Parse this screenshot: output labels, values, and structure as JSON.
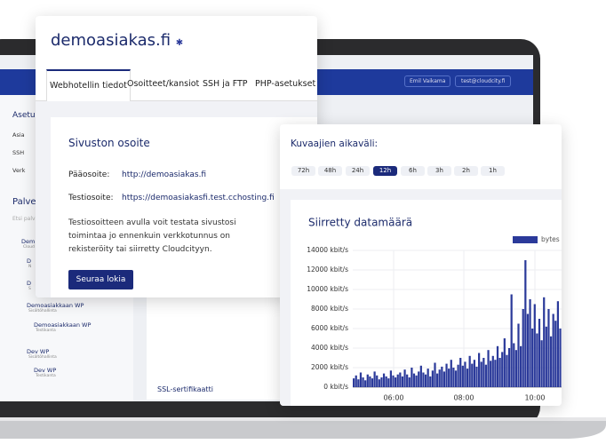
{
  "topbar": {
    "user": "Emil Vaikama",
    "email": "test@cloudcity.fi"
  },
  "sidebar": {
    "heading": "Asetuk",
    "items": [
      "Asia",
      "SSH",
      "Verk"
    ],
    "services_heading": "Palvel",
    "search": "Etsi palv",
    "tree": [
      {
        "title": "Dem",
        "sub": "Cloud"
      },
      {
        "title": "D",
        "sub": "N"
      },
      {
        "title": "D",
        "sub": "S"
      },
      {
        "title": "Demoasiakkaan WP",
        "sub": "Sisältöhallinta"
      },
      {
        "title": "Demoasiakkaan WP",
        "sub": "Testikanta"
      },
      {
        "title": "Dev WP",
        "sub": "Sisältöhallinta"
      },
      {
        "title": "Dev WP",
        "sub": "Testikanta"
      }
    ]
  },
  "footer_label": "SSL-sertifikaatti",
  "site_card": {
    "title": "demoasiakas.fi",
    "tabs": [
      "Webhotellin tiedot",
      "Osoitteet/kansiot",
      "SSH ja FTP",
      "PHP-asetukset"
    ],
    "active_tab": 0,
    "section_title": "Sivuston osoite",
    "rows": [
      {
        "label": "Pääosoite:",
        "value": "http://demoasiakas.fi"
      },
      {
        "label": "Testiosoite:",
        "value": "https://demoasiakasfi.test.cchosting.fi"
      }
    ],
    "description": "Testiosoitteen avulla voit testata sivustosi toimintaa jo ennenkuin verkkotunnus on rekisteröity tai siirretty Cloudcityyn.",
    "button": "Seuraa lokia"
  },
  "chart_card": {
    "range_label": "Kuvaajien aikaväli:",
    "ranges": [
      "72h",
      "48h",
      "24h",
      "12h",
      "6h",
      "3h",
      "2h",
      "1h"
    ],
    "active_range": 3
  },
  "chart_data": {
    "type": "bar",
    "title": "Siirretty datamäärä",
    "legend": "bytes",
    "color": "#2b3a9a",
    "ylim": [
      0,
      14000
    ],
    "yticks": [
      {
        "value": 0,
        "label": "0 kbit/s"
      },
      {
        "value": 2000,
        "label": "2000 kbit/s"
      },
      {
        "value": 4000,
        "label": "4000 kbit/s"
      },
      {
        "value": 6000,
        "label": "6000 kbit/s"
      },
      {
        "value": 8000,
        "label": "8000 kbit/s"
      },
      {
        "value": 10000,
        "label": "10000 kbit/s"
      },
      {
        "value": 12000,
        "label": "12000 kbit/s"
      },
      {
        "value": 14000,
        "label": "14000 kbit/s"
      }
    ],
    "xticks": [
      "06:00",
      "08:00",
      "10:00"
    ],
    "grid": true,
    "values": [
      900,
      1200,
      800,
      1500,
      1000,
      700,
      1300,
      1100,
      900,
      1600,
      1200,
      800,
      1000,
      1400,
      1100,
      900,
      1700,
      1200,
      1000,
      1300,
      1500,
      1100,
      1800,
      1300,
      1000,
      2000,
      1400,
      1200,
      1600,
      2200,
      1500,
      1300,
      1900,
      1100,
      1700,
      2500,
      1400,
      1800,
      2100,
      1600,
      2400,
      1900,
      2800,
      2000,
      1700,
      2300,
      3000,
      2200,
      2600,
      1900,
      3200,
      2400,
      2800,
      2100,
      3500,
      2600,
      3000,
      2300,
      3800,
      2700,
      3200,
      2800,
      4200,
      3000,
      3600,
      5000,
      3300,
      4000,
      9500,
      4500,
      3800,
      6500,
      4200,
      8000,
      13000,
      7500,
      9000,
      6000,
      8500,
      5500,
      7000,
      4800,
      9200,
      6200,
      8000,
      5200,
      7500,
      6800,
      8800,
      6000
    ]
  }
}
